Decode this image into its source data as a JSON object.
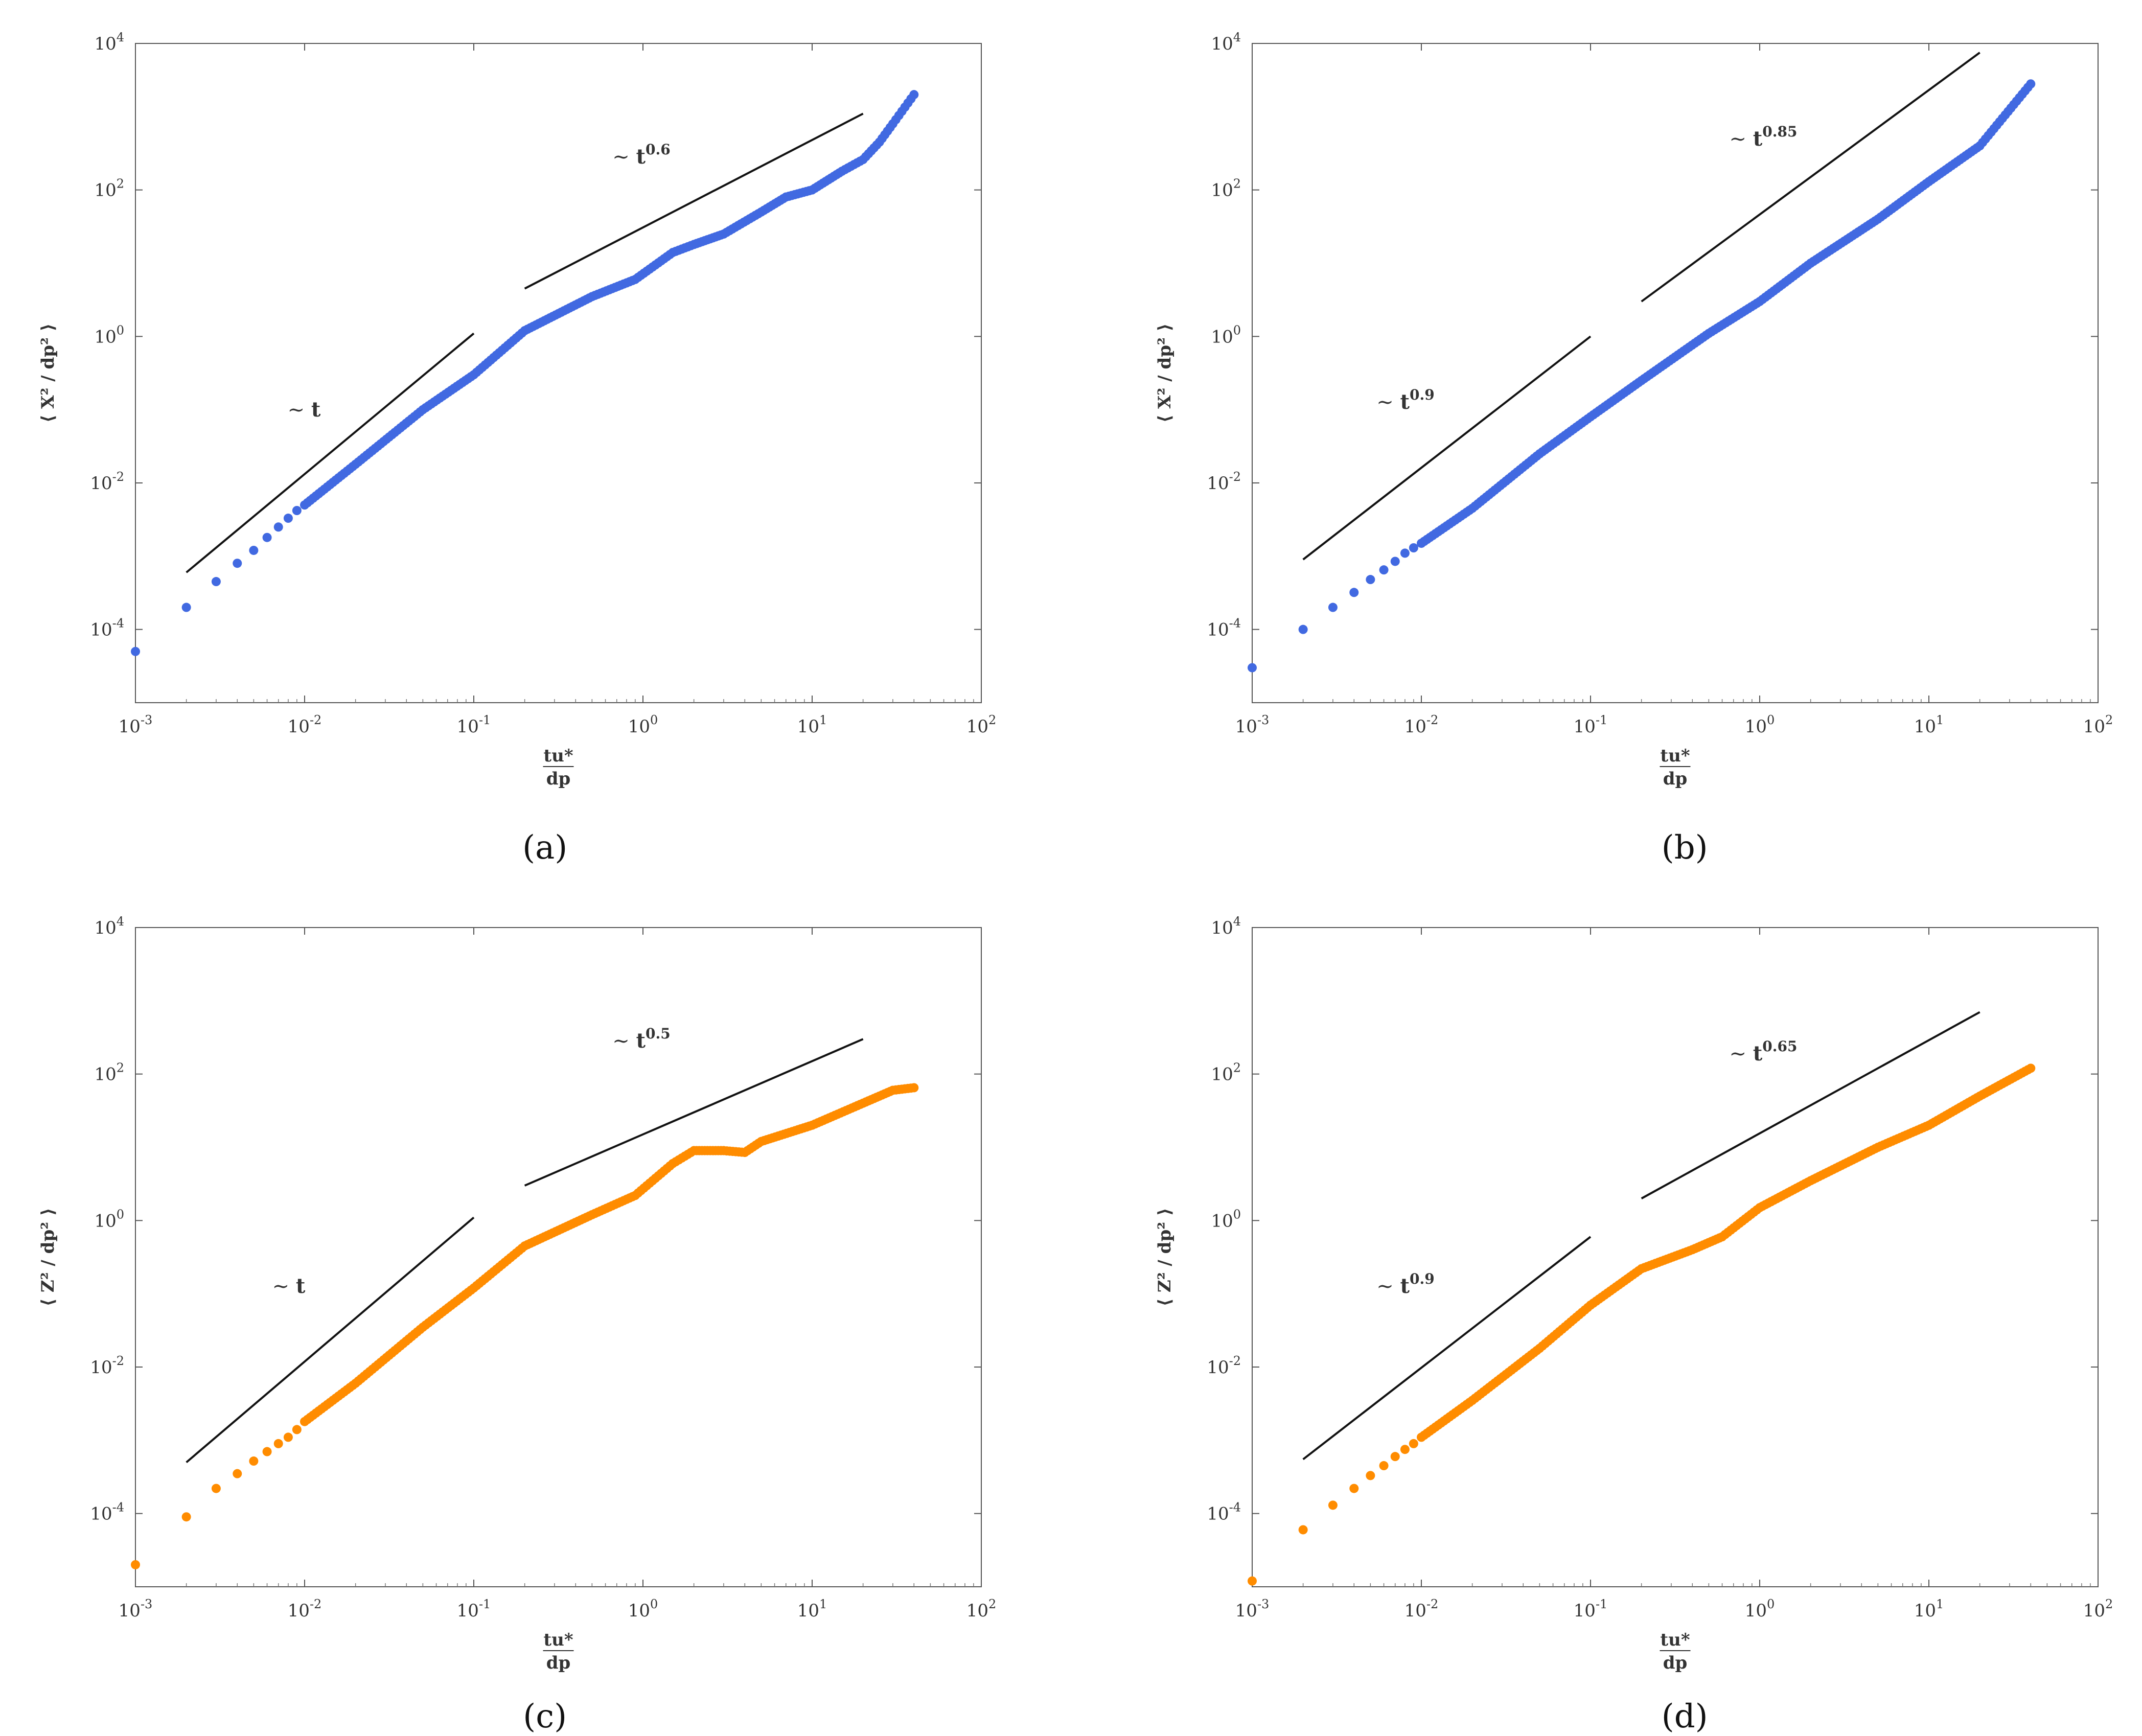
{
  "figure": {
    "panel_labels": [
      "(a)",
      "(b)",
      "(c)",
      "(d)"
    ],
    "x_tick_labels": [
      "10^-3",
      "10^-2",
      "10^-1",
      "10^0",
      "10^1",
      "10^2"
    ],
    "y_tick_labels": [
      "10^-4",
      "10^-2",
      "10^0",
      "10^2",
      "10^4"
    ]
  },
  "chart_data": [
    {
      "id": "a",
      "type": "scatter",
      "panel_label": "(a)",
      "xscale": "log",
      "yscale": "log",
      "xlim": [
        0.001,
        100
      ],
      "ylim": [
        1e-05,
        10000
      ],
      "xlabel_num": "tu*",
      "xlabel_den": "dp",
      "ylabel_num": "X²",
      "ylabel_den": "dp²",
      "ylabel_text": "⟨ X² / dp² ⟩",
      "color": "#4169E1",
      "series": [
        {
          "name": "X² / dp²",
          "x": [
            0.001,
            0.002,
            0.003,
            0.004,
            0.005,
            0.006,
            0.007,
            0.008,
            0.009,
            0.01,
            0.02,
            0.05,
            0.1,
            0.2,
            0.5,
            0.9,
            1.5,
            2,
            3,
            5,
            7,
            10,
            15,
            20,
            25,
            30,
            40
          ],
          "y": [
            5e-05,
            0.0002,
            0.00045,
            0.0008,
            0.0012,
            0.0018,
            0.0025,
            0.0033,
            0.0042,
            0.005,
            0.018,
            0.1,
            0.3,
            1.2,
            3.5,
            6,
            14,
            18,
            25,
            50,
            80,
            100,
            180,
            260,
            450,
            800,
            2000
          ]
        }
      ],
      "guides": [
        {
          "label_prefix": "~ ",
          "label_base": "t",
          "label_exp": "",
          "x": [
            0.002,
            0.1
          ],
          "y": [
            0.0006,
            1.1
          ]
        },
        {
          "label_prefix": "~ ",
          "label_base": "t",
          "label_exp": "0.6",
          "x": [
            0.2,
            20
          ],
          "y": [
            4.5,
            1100
          ]
        }
      ]
    },
    {
      "id": "b",
      "type": "scatter",
      "panel_label": "(b)",
      "xscale": "log",
      "yscale": "log",
      "xlim": [
        0.001,
        100
      ],
      "ylim": [
        1e-05,
        10000
      ],
      "xlabel_num": "tu*",
      "xlabel_den": "dp",
      "ylabel_num": "X²",
      "ylabel_den": "dp²",
      "ylabel_text": "⟨ X² / dp² ⟩",
      "color": "#4169E1",
      "series": [
        {
          "name": "X² / dp²",
          "x": [
            0.001,
            0.002,
            0.003,
            0.004,
            0.005,
            0.006,
            0.007,
            0.008,
            0.009,
            0.01,
            0.02,
            0.05,
            0.1,
            0.2,
            0.5,
            1,
            2,
            5,
            10,
            20,
            40
          ],
          "y": [
            3e-05,
            0.0001,
            0.0002,
            0.00032,
            0.00048,
            0.00065,
            0.00085,
            0.0011,
            0.0013,
            0.0015,
            0.0045,
            0.025,
            0.08,
            0.25,
            1.1,
            3,
            10,
            40,
            130,
            400,
            2800
          ]
        }
      ],
      "guides": [
        {
          "label_prefix": "~ ",
          "label_base": "t",
          "label_exp": "0.9",
          "x": [
            0.002,
            0.1
          ],
          "y": [
            0.0009,
            1.0
          ]
        },
        {
          "label_prefix": "~ ",
          "label_base": "t",
          "label_exp": "0.85",
          "x": [
            0.2,
            20
          ],
          "y": [
            3.0,
            7500
          ]
        }
      ]
    },
    {
      "id": "c",
      "type": "scatter",
      "panel_label": "(c)",
      "xscale": "log",
      "yscale": "log",
      "xlim": [
        0.001,
        100
      ],
      "ylim": [
        1e-05,
        10000
      ],
      "xlabel_num": "tu*",
      "xlabel_den": "dp",
      "ylabel_num": "Z²",
      "ylabel_den": "dp²",
      "ylabel_text": "⟨ Z² / dp² ⟩",
      "color": "#FF8C00",
      "series": [
        {
          "name": "Z² / dp²",
          "x": [
            0.001,
            0.002,
            0.003,
            0.004,
            0.005,
            0.006,
            0.007,
            0.008,
            0.009,
            0.01,
            0.02,
            0.05,
            0.1,
            0.2,
            0.5,
            0.9,
            1.5,
            2,
            3,
            4,
            5,
            10,
            20,
            30,
            40
          ],
          "y": [
            2e-05,
            9e-05,
            0.00022,
            0.00035,
            0.00052,
            0.0007,
            0.0009,
            0.0011,
            0.0014,
            0.0018,
            0.006,
            0.035,
            0.12,
            0.45,
            1.2,
            2.2,
            6,
            9,
            9,
            8.5,
            12,
            20,
            40,
            60,
            65
          ]
        }
      ],
      "guides": [
        {
          "label_prefix": "~ ",
          "label_base": "t",
          "label_exp": "",
          "x": [
            0.002,
            0.1
          ],
          "y": [
            0.0005,
            1.1
          ]
        },
        {
          "label_prefix": "~ ",
          "label_base": "t",
          "label_exp": "0.5",
          "x": [
            0.2,
            20
          ],
          "y": [
            3.0,
            300
          ]
        }
      ]
    },
    {
      "id": "d",
      "type": "scatter",
      "panel_label": "(d)",
      "xscale": "log",
      "yscale": "log",
      "xlim": [
        0.001,
        100
      ],
      "ylim": [
        1e-05,
        10000
      ],
      "xlabel_num": "tu*",
      "xlabel_den": "dp",
      "ylabel_num": "Z²",
      "ylabel_den": "dp²",
      "ylabel_text": "⟨ Z² / dp² ⟩",
      "color": "#FF8C00",
      "series": [
        {
          "name": "Z² / dp²",
          "x": [
            0.001,
            0.002,
            0.003,
            0.004,
            0.005,
            0.006,
            0.007,
            0.008,
            0.009,
            0.01,
            0.02,
            0.05,
            0.1,
            0.2,
            0.4,
            0.6,
            1,
            2,
            5,
            10,
            20,
            40
          ],
          "y": [
            1.2e-05,
            6e-05,
            0.00013,
            0.00022,
            0.00033,
            0.00045,
            0.0006,
            0.00075,
            0.0009,
            0.0011,
            0.0035,
            0.018,
            0.07,
            0.22,
            0.4,
            0.6,
            1.5,
            3.5,
            10,
            20,
            50,
            120
          ]
        }
      ],
      "guides": [
        {
          "label_prefix": "~ ",
          "label_base": "t",
          "label_exp": "0.9",
          "x": [
            0.002,
            0.1
          ],
          "y": [
            0.00055,
            0.6
          ]
        },
        {
          "label_prefix": "~ ",
          "label_base": "t",
          "label_exp": "0.65",
          "x": [
            0.2,
            20
          ],
          "y": [
            2.0,
            700
          ]
        }
      ]
    }
  ]
}
